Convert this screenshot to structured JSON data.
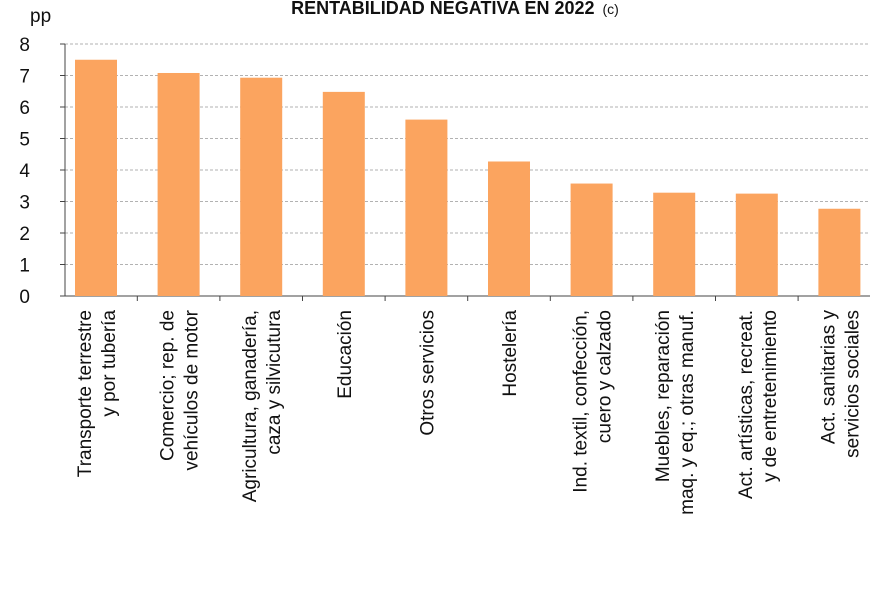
{
  "chart_data": {
    "type": "bar",
    "title": "RENTABILIDAD NEGATIVA EN 2022",
    "title_note": "(c)",
    "y_label": "pp",
    "categories": [
      [
        "Transporte terrestre",
        "y por tubería"
      ],
      [
        "Comercio; rep. de",
        "vehículos de motor"
      ],
      [
        "Agricultura, ganadería,",
        "caza y silvicutura"
      ],
      [
        "Educación"
      ],
      [
        "Otros servicios"
      ],
      [
        "Hostelería"
      ],
      [
        "Ind. textil, confección,",
        "cuero y calzado"
      ],
      [
        "Muebles, reparación",
        "maq. y eq.; otras manuf."
      ],
      [
        "Act. artísticas, recreat.",
        "y de entretenimiento"
      ],
      [
        "Act. sanitarias y",
        "servicios sociales"
      ]
    ],
    "values": [
      7.5,
      7.08,
      6.93,
      6.48,
      5.6,
      4.27,
      3.57,
      3.28,
      3.25,
      2.77
    ],
    "color": "#fba45f",
    "ylim": [
      0,
      8
    ],
    "yticks": [
      0,
      1,
      2,
      3,
      4,
      5,
      6,
      7,
      8
    ],
    "grid": true
  }
}
